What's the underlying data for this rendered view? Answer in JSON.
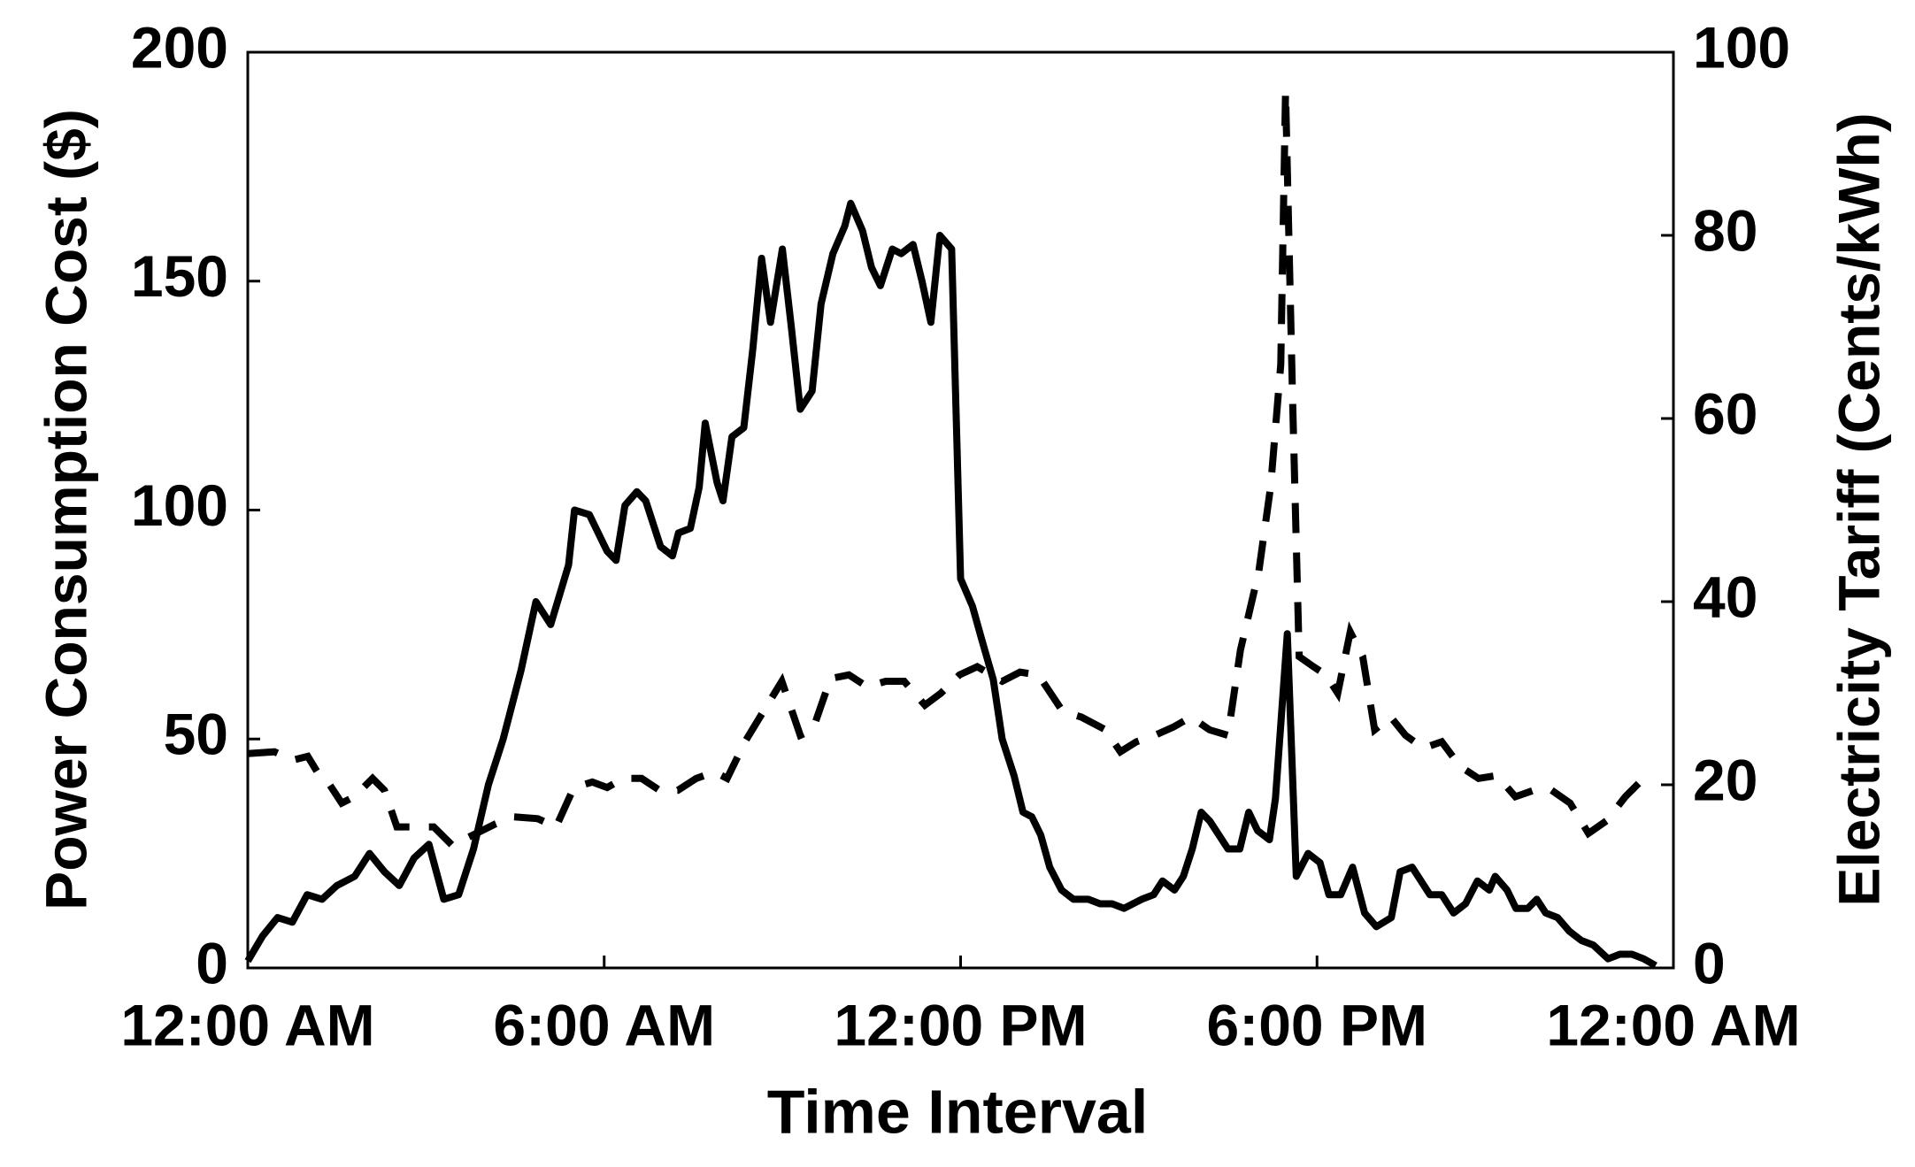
{
  "chart_data": {
    "type": "line",
    "x_label": "Time Interval",
    "y_label": "Power Consumption Cost ($)",
    "y2_label": "Electricity Tariff (Cents/kWh)",
    "xlim": [
      0,
      24
    ],
    "xticks": [
      {
        "value": 0,
        "label": "12:00 AM"
      },
      {
        "value": 6,
        "label": "6:00 AM"
      },
      {
        "value": 12,
        "label": "12:00 PM"
      },
      {
        "value": 18,
        "label": "6:00 PM"
      },
      {
        "value": 24,
        "label": "12:00 AM"
      }
    ],
    "ylim": [
      0,
      200
    ],
    "yticks": [
      0,
      50,
      100,
      150,
      200
    ],
    "y2lim": [
      0,
      100
    ],
    "y2ticks": [
      0,
      20,
      40,
      60,
      80,
      100
    ],
    "grid": false,
    "series": [
      {
        "color": "#000000",
        "style": "solid",
        "x": [
          0,
          0.25,
          0.5,
          0.75,
          1.0,
          1.25,
          1.5,
          1.8,
          2.05,
          2.3,
          2.55,
          2.8,
          3.05,
          3.3,
          3.55,
          3.8,
          4.05,
          4.3,
          4.6,
          4.85,
          5.1,
          5.4,
          5.5,
          5.75,
          6.05,
          6.2,
          6.35,
          6.55,
          6.7,
          6.95,
          7.15,
          7.25,
          7.45,
          7.6,
          7.7,
          7.9,
          8.0,
          8.15,
          8.35,
          8.5,
          8.65,
          8.8,
          9.0,
          9.15,
          9.3,
          9.5,
          9.65,
          9.85,
          10.05,
          10.15,
          10.35,
          10.5,
          10.65,
          10.85,
          11.0,
          11.2,
          11.35,
          11.5,
          11.65,
          11.85,
          12.0,
          12.2,
          12.35,
          12.55,
          12.7,
          12.9,
          13.05,
          13.2,
          13.35,
          13.5,
          13.7,
          13.9,
          14.15,
          14.35,
          14.55,
          14.75,
          15.05,
          15.25,
          15.4,
          15.6,
          15.75,
          15.9,
          16.05,
          16.2,
          16.35,
          16.5,
          16.7,
          16.85,
          17.0,
          17.2,
          17.3,
          17.5,
          17.65,
          17.85,
          18.05,
          18.2,
          18.4,
          18.6,
          18.8,
          19.0,
          19.25,
          19.4,
          19.6,
          19.9,
          20.1,
          20.3,
          20.5,
          20.7,
          20.9,
          21.0,
          21.2,
          21.35,
          21.55,
          21.7,
          21.85,
          22.05,
          22.25,
          22.45,
          22.65,
          22.9,
          23.1,
          23.3,
          23.5,
          23.7
        ],
        "values": [
          1.5,
          7,
          11,
          10,
          16,
          15,
          18,
          20,
          25,
          21,
          18,
          24,
          27,
          15,
          16,
          26,
          40,
          50,
          65,
          80,
          75,
          88,
          100,
          99,
          91,
          89,
          101,
          104,
          102,
          92,
          90,
          95,
          96,
          105,
          119,
          106,
          102,
          116,
          118,
          135,
          155,
          141,
          157,
          140,
          122,
          126,
          145,
          156,
          162,
          167,
          161,
          153,
          149,
          157,
          156,
          158,
          150,
          141,
          160,
          157,
          85,
          79,
          72,
          63,
          50,
          42,
          34,
          33,
          29,
          22,
          17,
          15,
          15,
          14,
          14,
          13,
          15,
          16,
          19,
          17,
          20,
          26,
          34,
          32,
          29,
          26,
          26,
          34,
          30,
          28,
          37,
          73,
          20,
          25,
          23,
          16,
          16,
          22,
          12,
          9,
          11,
          21,
          22,
          16,
          16,
          12,
          14,
          19,
          17,
          20,
          17,
          13,
          13,
          15,
          12,
          11,
          8,
          6,
          5,
          2,
          3,
          3,
          2,
          0.5
        ]
      },
      {
        "color": "#000000",
        "style": "dashed",
        "axis": "y2",
        "x": [
          0,
          0.45,
          0.76,
          1.01,
          1.17,
          1.38,
          1.58,
          1.79,
          2.1,
          2.3,
          2.51,
          2.82,
          3.13,
          3.44,
          3.85,
          4.16,
          4.47,
          4.88,
          5.19,
          5.49,
          5.8,
          6.05,
          6.32,
          6.63,
          6.93,
          7.24,
          7.55,
          7.86,
          8.07,
          8.37,
          8.68,
          8.99,
          9.3,
          9.51,
          9.81,
          10.12,
          10.43,
          10.74,
          11.05,
          11.4,
          11.67,
          11.98,
          12.28,
          12.7,
          13.0,
          13.31,
          13.72,
          14.03,
          14.44,
          14.69,
          14.96,
          15.27,
          15.58,
          15.88,
          16.19,
          16.5,
          16.71,
          17.02,
          17.22,
          17.39,
          17.47,
          17.59,
          17.7,
          17.94,
          18.15,
          18.35,
          18.56,
          18.77,
          18.97,
          19.24,
          19.49,
          19.79,
          20.1,
          20.41,
          20.72,
          21.03,
          21.34,
          21.65,
          21.95,
          22.26,
          22.57,
          22.88,
          23.19,
          23.5
        ],
        "values": [
          23.4,
          23.6,
          22.7,
          23.1,
          21.4,
          20,
          18,
          18.7,
          20.7,
          19.4,
          15.4,
          15.4,
          15.4,
          13.4,
          14.7,
          15.7,
          16.5,
          16.3,
          15.4,
          19.7,
          20.3,
          19.7,
          20.7,
          20.7,
          19.4,
          19.4,
          20.7,
          21.4,
          20.7,
          24.7,
          28,
          31.3,
          25.4,
          26,
          31.6,
          32,
          30.7,
          31.3,
          31.3,
          28.7,
          30,
          32,
          32.9,
          31.3,
          32.3,
          32,
          28,
          27.4,
          26,
          23.6,
          24.7,
          25.4,
          26.3,
          27.4,
          26,
          25.4,
          34.7,
          43.3,
          52.6,
          65.9,
          95.7,
          61.9,
          34,
          32.9,
          32,
          30,
          36.7,
          34,
          26,
          27.4,
          25.4,
          24,
          24.7,
          22,
          20.7,
          21,
          18.7,
          19.4,
          19.4,
          18,
          14.7,
          16.1,
          18.7,
          20.7
        ]
      }
    ]
  }
}
